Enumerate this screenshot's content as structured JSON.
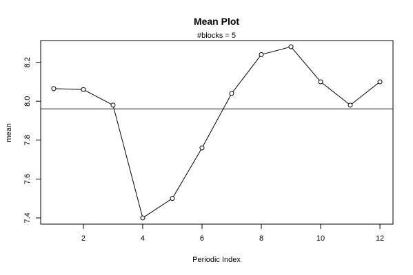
{
  "chart_data": {
    "type": "line",
    "title": "Mean Plot",
    "subtitle": "#blocks =  5",
    "xlabel": "Periodic Index",
    "ylabel": "mean",
    "x": [
      1,
      2,
      3,
      4,
      5,
      6,
      7,
      8,
      9,
      10,
      11,
      12
    ],
    "y": [
      8.065,
      8.06,
      7.98,
      7.4,
      7.5,
      7.76,
      8.04,
      8.24,
      8.28,
      8.1,
      7.98,
      8.1
    ],
    "reference_line": 7.96,
    "xlim": [
      0.56,
      12.44
    ],
    "ylim": [
      7.368,
      8.312
    ],
    "xticks": [
      2,
      4,
      6,
      8,
      10,
      12
    ],
    "xtick_labels": [
      "2",
      "4",
      "6",
      "8",
      "10",
      "12"
    ],
    "yticks": [
      7.4,
      7.6,
      7.8,
      8.0,
      8.2
    ],
    "ytick_labels": [
      "7.4",
      "7.6",
      "7.8",
      "8.0",
      "8.2"
    ],
    "markers": "open-circle",
    "grid": false,
    "legend": "none"
  }
}
